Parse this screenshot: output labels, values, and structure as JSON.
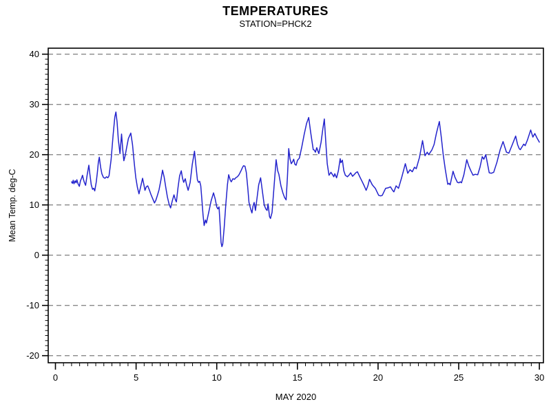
{
  "header": {
    "title": "TEMPERATURES",
    "subtitle": "STATION=PHCK2"
  },
  "chart_data": {
    "type": "line",
    "title": "TEMPERATURES",
    "subtitle": "STATION=PHCK2",
    "xlabel": "MAY 2020",
    "ylabel": "Mean Temp. deg-C",
    "x_ticks": [
      0,
      5,
      10,
      15,
      20,
      25,
      30
    ],
    "x_minor_step": 0.5,
    "y_ticks": [
      -20,
      -10,
      0,
      10,
      20,
      30,
      40
    ],
    "y_minor_step": 1,
    "xlim": [
      -0.45,
      30.3
    ],
    "ylim": [
      -21.4,
      41.3
    ],
    "grid": "horizontal-dashed",
    "legend": "none",
    "line_color": "#2222cc",
    "grid_color": "#888888",
    "axis_color": "#000000",
    "series": [
      {
        "name": "Mean Temp deg-C at PHCK2",
        "points": [
          [
            1.0,
            14.6
          ],
          [
            1.05,
            14.3
          ],
          [
            1.1,
            14.9
          ],
          [
            1.15,
            14.2
          ],
          [
            1.22,
            14.8
          ],
          [
            1.28,
            14.4
          ],
          [
            1.33,
            15.0
          ],
          [
            1.4,
            14.2
          ],
          [
            1.48,
            13.7
          ],
          [
            1.55,
            14.8
          ],
          [
            1.62,
            15.3
          ],
          [
            1.68,
            15.9
          ],
          [
            1.74,
            15.0
          ],
          [
            1.8,
            14.4
          ],
          [
            1.87,
            13.9
          ],
          [
            1.97,
            16.0
          ],
          [
            2.07,
            17.9
          ],
          [
            2.14,
            16.0
          ],
          [
            2.22,
            14.0
          ],
          [
            2.3,
            13.1
          ],
          [
            2.37,
            13.3
          ],
          [
            2.44,
            12.8
          ],
          [
            2.53,
            14.6
          ],
          [
            2.6,
            16.5
          ],
          [
            2.66,
            18.5
          ],
          [
            2.72,
            19.5
          ],
          [
            2.8,
            17.5
          ],
          [
            2.88,
            16.2
          ],
          [
            2.97,
            15.5
          ],
          [
            3.07,
            15.3
          ],
          [
            3.17,
            15.6
          ],
          [
            3.25,
            15.4
          ],
          [
            3.32,
            15.8
          ],
          [
            3.45,
            19.0
          ],
          [
            3.58,
            24.0
          ],
          [
            3.68,
            27.5
          ],
          [
            3.75,
            28.5
          ],
          [
            3.82,
            26.5
          ],
          [
            3.9,
            23.0
          ],
          [
            4.0,
            20.2
          ],
          [
            4.1,
            24.1
          ],
          [
            4.17,
            21.0
          ],
          [
            4.24,
            18.8
          ],
          [
            4.32,
            19.8
          ],
          [
            4.42,
            21.5
          ],
          [
            4.52,
            23.2
          ],
          [
            4.67,
            24.3
          ],
          [
            4.78,
            22.0
          ],
          [
            4.88,
            18.5
          ],
          [
            4.98,
            15.5
          ],
          [
            5.08,
            13.5
          ],
          [
            5.18,
            12.2
          ],
          [
            5.28,
            13.6
          ],
          [
            5.4,
            15.3
          ],
          [
            5.48,
            14.1
          ],
          [
            5.55,
            12.9
          ],
          [
            5.63,
            13.6
          ],
          [
            5.72,
            13.8
          ],
          [
            5.82,
            13.0
          ],
          [
            5.92,
            12.1
          ],
          [
            6.02,
            11.3
          ],
          [
            6.14,
            10.4
          ],
          [
            6.22,
            10.9
          ],
          [
            6.31,
            11.8
          ],
          [
            6.42,
            13.0
          ],
          [
            6.54,
            15.0
          ],
          [
            6.64,
            16.9
          ],
          [
            6.74,
            15.5
          ],
          [
            6.84,
            13.5
          ],
          [
            6.94,
            11.6
          ],
          [
            7.04,
            10.2
          ],
          [
            7.14,
            9.4
          ],
          [
            7.24,
            10.8
          ],
          [
            7.35,
            12.0
          ],
          [
            7.44,
            11.0
          ],
          [
            7.5,
            10.6
          ],
          [
            7.6,
            13.5
          ],
          [
            7.7,
            15.8
          ],
          [
            7.8,
            16.8
          ],
          [
            7.88,
            15.3
          ],
          [
            7.95,
            14.5
          ],
          [
            8.05,
            15.2
          ],
          [
            8.13,
            14.0
          ],
          [
            8.23,
            12.9
          ],
          [
            8.35,
            14.5
          ],
          [
            8.48,
            18.0
          ],
          [
            8.62,
            20.7
          ],
          [
            8.72,
            17.5
          ],
          [
            8.8,
            15.0
          ],
          [
            8.87,
            14.5
          ],
          [
            8.94,
            14.7
          ],
          [
            9.01,
            13.8
          ],
          [
            9.08,
            10.9
          ],
          [
            9.15,
            8.0
          ],
          [
            9.22,
            5.9
          ],
          [
            9.3,
            7.0
          ],
          [
            9.36,
            6.4
          ],
          [
            9.5,
            8.5
          ],
          [
            9.65,
            10.8
          ],
          [
            9.8,
            12.4
          ],
          [
            9.9,
            11.2
          ],
          [
            10.0,
            9.6
          ],
          [
            10.07,
            9.2
          ],
          [
            10.14,
            9.6
          ],
          [
            10.2,
            6.5
          ],
          [
            10.27,
            2.5
          ],
          [
            10.32,
            1.7
          ],
          [
            10.37,
            2.2
          ],
          [
            10.46,
            5.5
          ],
          [
            10.56,
            10.0
          ],
          [
            10.66,
            14.0
          ],
          [
            10.74,
            16.0
          ],
          [
            10.84,
            14.9
          ],
          [
            10.9,
            14.6
          ],
          [
            11.0,
            15.2
          ],
          [
            11.1,
            15.1
          ],
          [
            11.18,
            15.4
          ],
          [
            11.28,
            15.6
          ],
          [
            11.38,
            16.0
          ],
          [
            11.52,
            16.9
          ],
          [
            11.6,
            17.5
          ],
          [
            11.66,
            17.8
          ],
          [
            11.75,
            17.7
          ],
          [
            11.83,
            16.5
          ],
          [
            11.92,
            13.5
          ],
          [
            12.0,
            10.5
          ],
          [
            12.1,
            9.2
          ],
          [
            12.18,
            8.4
          ],
          [
            12.25,
            9.8
          ],
          [
            12.32,
            10.5
          ],
          [
            12.4,
            8.9
          ],
          [
            12.5,
            11.5
          ],
          [
            12.6,
            14.0
          ],
          [
            12.72,
            15.4
          ],
          [
            12.82,
            13.0
          ],
          [
            12.94,
            10.0
          ],
          [
            13.04,
            9.2
          ],
          [
            13.12,
            8.9
          ],
          [
            13.18,
            10.2
          ],
          [
            13.27,
            7.7
          ],
          [
            13.33,
            7.3
          ],
          [
            13.43,
            8.5
          ],
          [
            13.55,
            13.5
          ],
          [
            13.68,
            19.0
          ],
          [
            13.78,
            16.8
          ],
          [
            13.85,
            16.1
          ],
          [
            13.98,
            13.8
          ],
          [
            14.1,
            12.4
          ],
          [
            14.2,
            11.5
          ],
          [
            14.3,
            11.0
          ],
          [
            14.38,
            15.5
          ],
          [
            14.46,
            21.2
          ],
          [
            14.54,
            19.2
          ],
          [
            14.62,
            18.2
          ],
          [
            14.7,
            18.6
          ],
          [
            14.77,
            19.1
          ],
          [
            14.84,
            18.1
          ],
          [
            14.92,
            17.9
          ],
          [
            15.01,
            18.9
          ],
          [
            15.12,
            19.3
          ],
          [
            15.27,
            21.5
          ],
          [
            15.42,
            24.0
          ],
          [
            15.57,
            26.2
          ],
          [
            15.7,
            27.4
          ],
          [
            15.82,
            24.5
          ],
          [
            15.98,
            21.0
          ],
          [
            16.05,
            20.9
          ],
          [
            16.12,
            20.5
          ],
          [
            16.2,
            21.4
          ],
          [
            16.33,
            20.2
          ],
          [
            16.47,
            22.5
          ],
          [
            16.57,
            25.0
          ],
          [
            16.67,
            27.1
          ],
          [
            16.78,
            21.5
          ],
          [
            16.85,
            18.2
          ],
          [
            16.96,
            15.9
          ],
          [
            17.08,
            16.5
          ],
          [
            17.18,
            16.0
          ],
          [
            17.26,
            15.6
          ],
          [
            17.32,
            16.2
          ],
          [
            17.43,
            15.4
          ],
          [
            17.54,
            16.8
          ],
          [
            17.65,
            19.2
          ],
          [
            17.7,
            18.4
          ],
          [
            17.79,
            18.9
          ],
          [
            17.88,
            16.8
          ],
          [
            17.97,
            15.9
          ],
          [
            18.1,
            15.6
          ],
          [
            18.22,
            16.0
          ],
          [
            18.3,
            16.4
          ],
          [
            18.42,
            15.7
          ],
          [
            18.54,
            16.1
          ],
          [
            18.62,
            16.4
          ],
          [
            18.72,
            16.6
          ],
          [
            18.9,
            15.4
          ],
          [
            19.04,
            14.5
          ],
          [
            19.14,
            13.8
          ],
          [
            19.26,
            12.9
          ],
          [
            19.37,
            13.8
          ],
          [
            19.47,
            15.1
          ],
          [
            19.64,
            14.0
          ],
          [
            19.83,
            13.3
          ],
          [
            20.04,
            11.9
          ],
          [
            20.17,
            11.8
          ],
          [
            20.26,
            11.9
          ],
          [
            20.47,
            13.3
          ],
          [
            20.62,
            13.4
          ],
          [
            20.77,
            13.6
          ],
          [
            20.9,
            12.9
          ],
          [
            20.98,
            12.6
          ],
          [
            21.12,
            13.8
          ],
          [
            21.27,
            13.3
          ],
          [
            21.47,
            15.5
          ],
          [
            21.69,
            18.2
          ],
          [
            21.84,
            16.3
          ],
          [
            21.98,
            17.0
          ],
          [
            22.12,
            16.6
          ],
          [
            22.26,
            17.5
          ],
          [
            22.37,
            17.2
          ],
          [
            22.57,
            19.5
          ],
          [
            22.76,
            22.8
          ],
          [
            22.91,
            19.8
          ],
          [
            23.05,
            20.5
          ],
          [
            23.14,
            20.0
          ],
          [
            23.33,
            20.9
          ],
          [
            23.47,
            22.0
          ],
          [
            23.62,
            24.3
          ],
          [
            23.8,
            26.6
          ],
          [
            23.92,
            23.5
          ],
          [
            24.04,
            20.0
          ],
          [
            24.17,
            17.0
          ],
          [
            24.32,
            14.1
          ],
          [
            24.4,
            14.3
          ],
          [
            24.47,
            14.0
          ],
          [
            24.65,
            16.7
          ],
          [
            24.77,
            15.5
          ],
          [
            24.92,
            14.5
          ],
          [
            25.02,
            14.4
          ],
          [
            25.1,
            14.6
          ],
          [
            25.17,
            14.4
          ],
          [
            25.32,
            16.0
          ],
          [
            25.5,
            19.0
          ],
          [
            25.62,
            17.8
          ],
          [
            25.75,
            16.8
          ],
          [
            25.89,
            15.9
          ],
          [
            26.02,
            16.1
          ],
          [
            26.18,
            16.0
          ],
          [
            26.32,
            17.5
          ],
          [
            26.46,
            19.6
          ],
          [
            26.56,
            19.1
          ],
          [
            26.68,
            20.0
          ],
          [
            26.89,
            16.4
          ],
          [
            27.02,
            16.3
          ],
          [
            27.17,
            16.5
          ],
          [
            27.37,
            18.5
          ],
          [
            27.57,
            21.0
          ],
          [
            27.75,
            22.6
          ],
          [
            27.96,
            20.5
          ],
          [
            28.11,
            20.3
          ],
          [
            28.32,
            22.0
          ],
          [
            28.53,
            23.7
          ],
          [
            28.65,
            22.0
          ],
          [
            28.75,
            21.2
          ],
          [
            28.82,
            21.0
          ],
          [
            29.03,
            22.1
          ],
          [
            29.12,
            21.8
          ],
          [
            29.27,
            23.0
          ],
          [
            29.46,
            24.9
          ],
          [
            29.6,
            23.5
          ],
          [
            29.72,
            24.2
          ],
          [
            29.87,
            23.2
          ],
          [
            30.0,
            22.5
          ]
        ]
      }
    ]
  }
}
